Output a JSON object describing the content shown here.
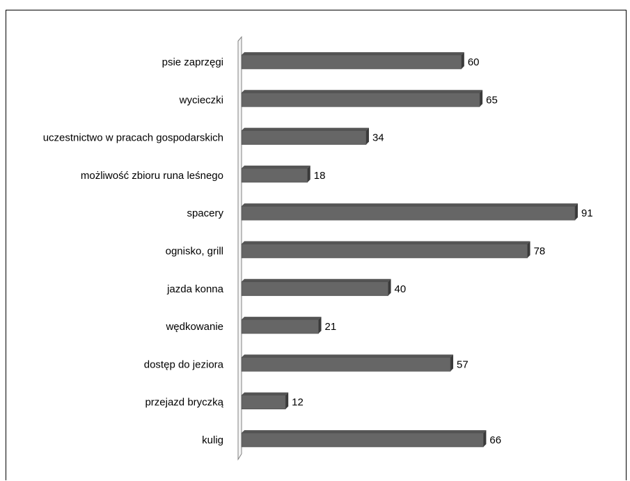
{
  "chart_data": {
    "type": "bar",
    "orientation": "horizontal",
    "style": "3d",
    "categories": [
      "psie zaprzęgi",
      "wycieczki",
      "uczestnictwo w pracach gospodarskich",
      "możliwość zbioru runa leśnego",
      "spacery",
      "ognisko, grill",
      "jazda konna",
      "wędkowanie",
      "dostęp do jeziora",
      "przejazd bryczką",
      "kulig"
    ],
    "values": [
      60,
      65,
      34,
      18,
      91,
      78,
      40,
      21,
      57,
      12,
      66
    ],
    "title": "",
    "xlabel": "",
    "ylabel": "",
    "xlim": [
      0,
      91
    ],
    "grid": false,
    "legend": "none",
    "colors": {
      "bar_front": "#666666",
      "bar_top": "#555555",
      "bar_side": "#3a3a3a",
      "axis": "#808080"
    }
  }
}
